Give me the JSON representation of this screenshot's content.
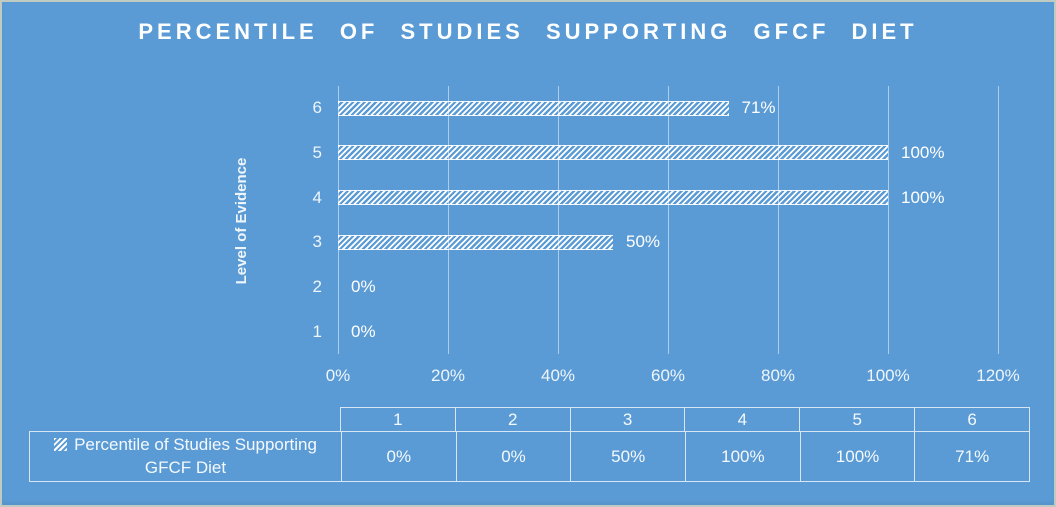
{
  "title": "PERCENTILE OF STUDIES SUPPORTING GFCF DIET",
  "colors": {
    "background": "#5b9bd5",
    "frame_border": "#bfcac3",
    "bar_pattern": "#ffffff",
    "grid_line": "rgba(255,255,255,0.5)",
    "table_border": "rgba(255,255,255,0.75)",
    "text": "#ffffff"
  },
  "chart_data": {
    "type": "bar",
    "orientation": "horizontal",
    "title": "PERCENTILE OF STUDIES SUPPORTING GFCF DIET",
    "xlabel": "",
    "ylabel": "Level of Evidence",
    "x_axis": {
      "min": 0,
      "max": 120,
      "tick_step": 20,
      "tick_labels": [
        "0%",
        "20%",
        "40%",
        "60%",
        "80%",
        "100%",
        "120%"
      ]
    },
    "y_axis": {
      "label": "Level of Evidence",
      "categories": [
        "1",
        "2",
        "3",
        "4",
        "5",
        "6"
      ]
    },
    "series": [
      {
        "name": "Percentile of Studies Supporting GFCF Diet",
        "values": [
          0,
          0,
          50,
          100,
          100,
          71
        ],
        "value_labels": [
          "0%",
          "0%",
          "50%",
          "100%",
          "100%",
          "71%"
        ],
        "pattern": "white-diagonal-hatch"
      }
    ],
    "grid": true,
    "legend_position": "bottom-data-table"
  },
  "data_table": {
    "column_headers": [
      "1",
      "2",
      "3",
      "4",
      "5",
      "6"
    ],
    "row_label": "Percentile of Studies Supporting GFCF Diet",
    "row_values": [
      "0%",
      "0%",
      "50%",
      "100%",
      "100%",
      "71%"
    ]
  }
}
